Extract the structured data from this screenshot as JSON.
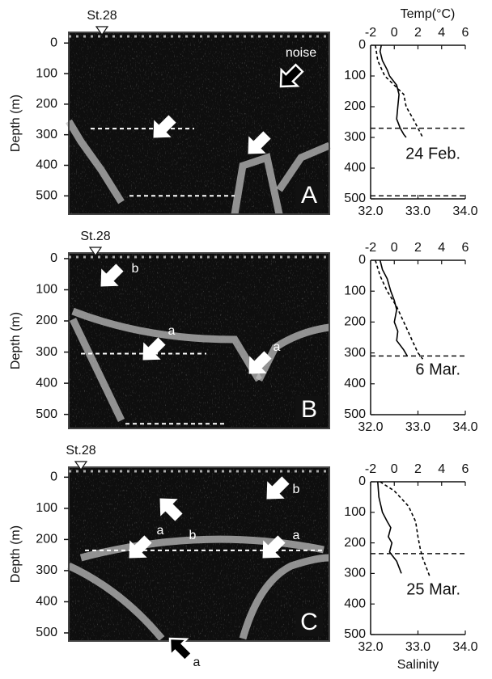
{
  "chart_data": [
    {
      "type": "echogram",
      "ylabel": "Depth (m)",
      "ylim": [
        -35,
        560
      ],
      "yticks": [
        0,
        100,
        200,
        300,
        400,
        500
      ],
      "station": "St.28",
      "panel_label": "A",
      "hlines": [
        280,
        500
      ],
      "annotations": [
        "noise"
      ]
    },
    {
      "type": "profile",
      "x2label": "Temp(°C)",
      "x2lim": [
        -2,
        6
      ],
      "x2ticks": [
        -2,
        0,
        2,
        4,
        6
      ],
      "xlim": [
        32,
        34
      ],
      "xticks": [
        {
          "value": 32,
          "label": "32.0"
        },
        {
          "value": 33,
          "label": "33.0"
        },
        {
          "value": 34,
          "label": "34.0"
        }
      ],
      "ylim": [
        0,
        500
      ],
      "yticks": [
        0,
        100,
        200,
        300,
        400,
        500
      ],
      "date": "24 Feb.",
      "hlines": [
        270,
        490
      ],
      "series": [
        {
          "axis": "x2",
          "style": "solid",
          "color": "#000000",
          "y": [
            0,
            20,
            50,
            80,
            100,
            130,
            160,
            200,
            240,
            270,
            290,
            300
          ],
          "x": [
            -1.1,
            -1.2,
            -1.0,
            -0.6,
            -0.4,
            0.2,
            0.4,
            0.3,
            0.2,
            0.5,
            0.8,
            1.0
          ]
        },
        {
          "axis": "x",
          "style": "dashed",
          "color": "#000000",
          "y": [
            0,
            50,
            100,
            130,
            160,
            200,
            240,
            270,
            300
          ],
          "x": [
            32.1,
            32.15,
            32.3,
            32.5,
            32.7,
            32.75,
            32.9,
            33.0,
            33.1
          ]
        }
      ]
    },
    {
      "type": "echogram",
      "ylabel": "Depth (m)",
      "ylim": [
        -18,
        545
      ],
      "yticks": [
        0,
        100,
        200,
        300,
        400,
        500
      ],
      "station": "St.28",
      "panel_label": "B",
      "hlines": [
        305,
        530
      ],
      "annotations": [
        "b",
        "a",
        "a"
      ]
    },
    {
      "type": "profile",
      "x2lim": [
        -2,
        6
      ],
      "x2ticks": [
        -2,
        0,
        2,
        4,
        6
      ],
      "xlim": [
        32,
        34
      ],
      "xticks": [
        {
          "value": 32,
          "label": "32.0"
        },
        {
          "value": 33,
          "label": "33.0"
        },
        {
          "value": 34,
          "label": "34.0"
        }
      ],
      "ylim": [
        0,
        500
      ],
      "yticks": [
        0,
        100,
        200,
        300,
        400,
        500
      ],
      "date": "6 Mar.",
      "hlines": [
        310
      ],
      "series": [
        {
          "axis": "x2",
          "style": "solid",
          "color": "#000000",
          "y": [
            0,
            30,
            60,
            100,
            130,
            160,
            200,
            230,
            260,
            290,
            310
          ],
          "x": [
            -1.2,
            -1.0,
            -0.6,
            -0.3,
            0,
            0.2,
            0,
            0.3,
            0.2,
            0.8,
            1.1
          ]
        },
        {
          "axis": "x",
          "style": "dashed",
          "color": "#000000",
          "y": [
            0,
            50,
            100,
            150,
            200,
            250,
            300,
            320
          ],
          "x": [
            32.1,
            32.2,
            32.35,
            32.55,
            32.7,
            32.85,
            33.0,
            33.1
          ]
        }
      ]
    },
    {
      "type": "echogram",
      "ylabel": "Depth (m)",
      "ylim": [
        -32,
        526
      ],
      "yticks": [
        0,
        100,
        200,
        300,
        400,
        500
      ],
      "station": "St.28",
      "panel_label": "C",
      "hlines": [
        235
      ],
      "annotations": [
        "b",
        "b",
        "a",
        "a",
        "a"
      ]
    },
    {
      "type": "profile",
      "x2lim": [
        -2,
        6
      ],
      "x2ticks": [
        -2,
        0,
        2,
        4,
        6
      ],
      "xlabel": "Salinity",
      "xlim": [
        32,
        34
      ],
      "xticks": [
        {
          "value": 32,
          "label": "32.0"
        },
        {
          "value": 33,
          "label": "33.0"
        },
        {
          "value": 34,
          "label": "34.0"
        }
      ],
      "ylim": [
        0,
        500
      ],
      "yticks": [
        0,
        100,
        200,
        300,
        400,
        500
      ],
      "date": "25 Mar.",
      "hlines": [
        235
      ],
      "series": [
        {
          "axis": "x2",
          "style": "solid",
          "color": "#000000",
          "y": [
            0,
            50,
            100,
            130,
            150,
            180,
            200,
            230,
            260,
            300
          ],
          "x": [
            -1.4,
            -1.3,
            -1.0,
            -0.6,
            -0.3,
            -0.5,
            -0.2,
            -0.4,
            0.2,
            0.6
          ]
        },
        {
          "axis": "x",
          "style": "dashed",
          "color": "#000000",
          "y": [
            0,
            30,
            80,
            130,
            180,
            220,
            250,
            290,
            310
          ],
          "x": [
            32.2,
            32.5,
            32.8,
            32.95,
            33.0,
            33.05,
            33.1,
            33.2,
            33.25
          ]
        }
      ]
    }
  ]
}
